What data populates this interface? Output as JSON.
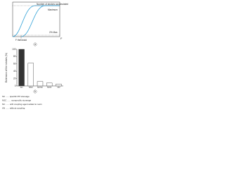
{
  "diagram": {
    "label": "a",
    "y_label": "Number of strokes accumulated",
    "maximum": "Maximum",
    "threshold_label": "2% Max.",
    "x_threshold": "F threshold",
    "x_label": "F"
  },
  "chart_data": {
    "type": "bar",
    "label": "b",
    "y_label": "Extension of the strokes (%)",
    "categories": [
      "SC",
      "NSC",
      "NCSC",
      "NCN",
      "AN"
    ],
    "values": [
      100,
      62,
      12,
      8,
      5
    ],
    "colors": [
      "#333333",
      "#ffffff",
      "#ffffff",
      "#ffffff",
      "#ffffff"
    ],
    "ylim": [
      0,
      100
    ],
    "yticks": [
      0,
      20,
      40,
      60,
      80,
      100
    ],
    "legend": [
      "SC ...... specific PP stoneage",
      "NSC ...... nonspecific stoneage",
      "NC ...... with coupling agent added to resin",
      "AN ...... without coupling"
    ]
  }
}
